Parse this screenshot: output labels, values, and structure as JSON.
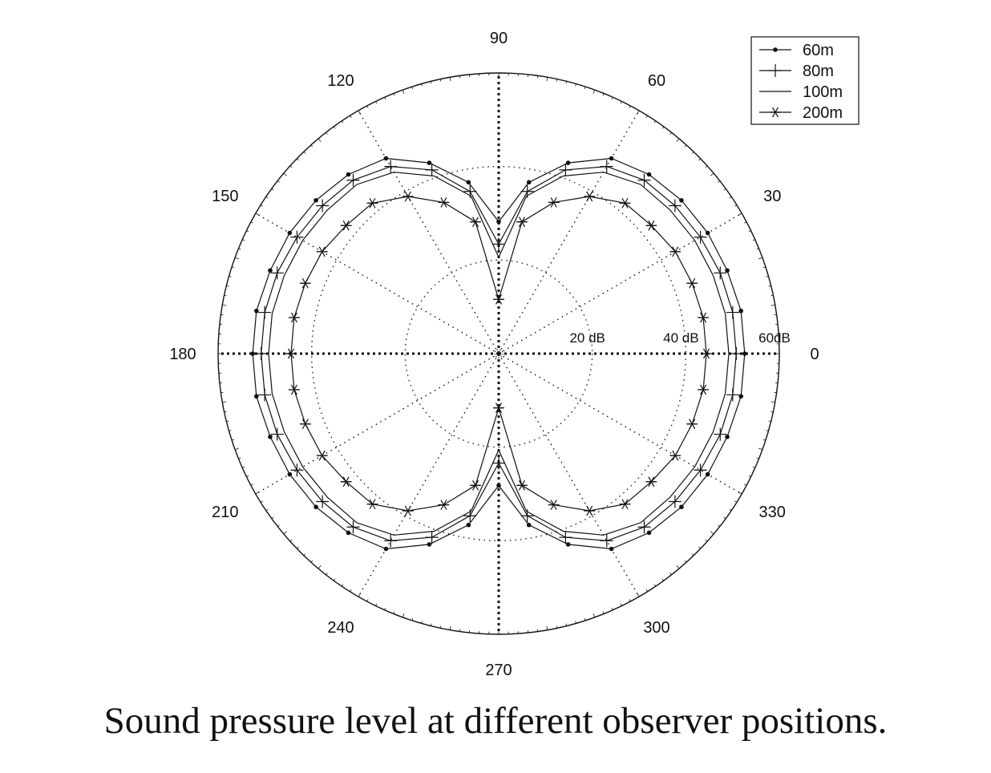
{
  "caption": "Sound pressure level at different observer positions.",
  "chart_data": {
    "type": "polar-line",
    "title": "",
    "angle_unit": "degrees",
    "angle_ticks": [
      0,
      30,
      60,
      90,
      120,
      150,
      180,
      210,
      240,
      270,
      300,
      330
    ],
    "angle_tick_labels": [
      "0",
      "30",
      "60",
      "90",
      "120",
      "150",
      "180",
      "210",
      "240",
      "270",
      "300",
      "330"
    ],
    "radial_range_db": [
      0,
      60
    ],
    "radial_rings_db": [
      20,
      40,
      60
    ],
    "radial_ring_labels": [
      "20 dB",
      "40 dB",
      "60dB"
    ],
    "grid": true,
    "legend_position": "top-right",
    "angles": [
      0,
      10,
      20,
      30,
      40,
      50,
      60,
      70,
      80,
      90,
      100,
      110,
      120,
      130,
      140,
      150,
      160,
      170,
      180,
      190,
      200,
      210,
      220,
      230,
      240,
      250,
      260,
      270,
      280,
      290,
      300,
      310,
      320,
      330,
      340,
      350
    ],
    "series": [
      {
        "name": "60m",
        "marker": "dot",
        "values": [
          52.6,
          52.6,
          52.0,
          51.6,
          51.0,
          50.0,
          48.2,
          43.4,
          37.2,
          28.2,
          37.2,
          43.4,
          48.2,
          50.0,
          51.0,
          51.6,
          52.0,
          52.6,
          52.6,
          52.6,
          52.0,
          51.6,
          51.0,
          50.0,
          48.2,
          43.4,
          37.2,
          28.2,
          37.2,
          43.4,
          48.2,
          50.0,
          51.0,
          51.6,
          52.0,
          52.6
        ]
      },
      {
        "name": "80m",
        "marker": "plus",
        "values": [
          50.8,
          50.8,
          50.4,
          49.8,
          49.2,
          48.4,
          46.2,
          41.8,
          35.2,
          23.4,
          35.2,
          41.8,
          46.2,
          48.4,
          49.2,
          49.8,
          50.4,
          50.8,
          50.8,
          50.8,
          50.4,
          49.8,
          49.2,
          48.4,
          46.2,
          41.8,
          35.2,
          23.4,
          35.2,
          41.8,
          46.2,
          48.4,
          49.2,
          49.8,
          50.4,
          50.8
        ]
      },
      {
        "name": "100m",
        "marker": "none",
        "values": [
          49.2,
          49.2,
          48.8,
          48.4,
          47.8,
          47.2,
          44.8,
          40.4,
          34.2,
          20.6,
          34.2,
          40.4,
          44.8,
          47.2,
          47.8,
          48.4,
          48.8,
          49.2,
          49.2,
          49.2,
          48.8,
          48.4,
          47.8,
          47.2,
          44.8,
          40.4,
          34.2,
          20.6,
          34.2,
          40.4,
          44.8,
          47.2,
          47.8,
          48.4,
          48.8,
          49.2
        ]
      },
      {
        "name": "200m",
        "marker": "asterisk",
        "values": [
          44.4,
          44.4,
          44.0,
          43.6,
          42.6,
          42.0,
          38.8,
          34.4,
          28.6,
          11.6,
          28.6,
          34.4,
          38.8,
          42.0,
          42.6,
          43.6,
          44.0,
          44.4,
          44.4,
          44.4,
          44.0,
          43.6,
          42.6,
          42.0,
          38.8,
          34.4,
          28.6,
          11.6,
          28.6,
          34.4,
          38.8,
          42.0,
          42.6,
          43.6,
          44.0,
          44.4
        ]
      }
    ]
  }
}
